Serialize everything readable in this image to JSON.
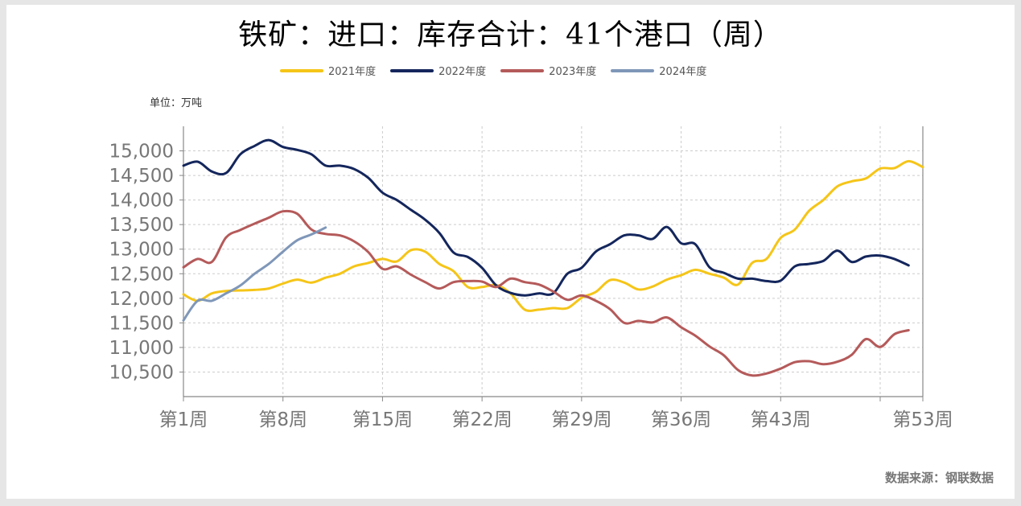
{
  "title": "铁矿：进口：库存合计：41个港口（周）",
  "unit_label": "单位：万吨",
  "source_label": "数据来源：钢联数据",
  "chart_data": {
    "type": "line",
    "title": "铁矿：进口：库存合计：41个港口（周）",
    "xlabel": "",
    "ylabel": "单位：万吨",
    "x_ticks": [
      {
        "week": 1,
        "label": "第1周"
      },
      {
        "week": 8,
        "label": "第8周"
      },
      {
        "week": 15,
        "label": "第15周"
      },
      {
        "week": 22,
        "label": "第22周"
      },
      {
        "week": 29,
        "label": "第29周"
      },
      {
        "week": 36,
        "label": "第36周"
      },
      {
        "week": 43,
        "label": "第43周"
      },
      {
        "week": 53,
        "label": "第53周"
      }
    ],
    "xlim": [
      1,
      53
    ],
    "ylim": [
      10000,
      15500
    ],
    "y_ticks": [
      {
        "value": 10500,
        "label": "10,500"
      },
      {
        "value": 11000,
        "label": "11,000"
      },
      {
        "value": 11500,
        "label": "11,500"
      },
      {
        "value": 12000,
        "label": "12,000"
      },
      {
        "value": 12500,
        "label": "12,500"
      },
      {
        "value": 13000,
        "label": "13,000"
      },
      {
        "value": 13500,
        "label": "13,500"
      },
      {
        "value": 14000,
        "label": "14,000"
      },
      {
        "value": 14500,
        "label": "14,500"
      },
      {
        "value": 15000,
        "label": "15,000"
      }
    ],
    "grid": true,
    "legend_position": "top",
    "series": [
      {
        "name": "2021年度",
        "color": "#f5c518",
        "x": [
          1,
          2,
          3,
          4,
          5,
          6,
          7,
          8,
          9,
          10,
          11,
          12,
          13,
          14,
          15,
          16,
          17,
          18,
          19,
          20,
          21,
          22,
          23,
          24,
          25,
          26,
          27,
          28,
          29,
          30,
          31,
          32,
          33,
          34,
          35,
          36,
          37,
          38,
          39,
          40,
          41,
          42,
          43,
          44,
          45,
          46,
          47,
          48,
          49,
          50,
          51,
          52,
          53
        ],
        "values": [
          12080,
          11950,
          12100,
          12150,
          12160,
          12170,
          12200,
          12300,
          12380,
          12320,
          12420,
          12500,
          12650,
          12720,
          12800,
          12750,
          12980,
          12950,
          12700,
          12550,
          12230,
          12230,
          12270,
          12100,
          11770,
          11770,
          11800,
          11800,
          12010,
          12130,
          12370,
          12320,
          12180,
          12240,
          12380,
          12470,
          12580,
          12500,
          12420,
          12280,
          12720,
          12800,
          13230,
          13400,
          13780,
          14000,
          14280,
          14380,
          14440,
          14640,
          14650,
          14790,
          14670
        ]
      },
      {
        "name": "2022年度",
        "color": "#14265c",
        "x": [
          1,
          2,
          3,
          4,
          5,
          6,
          7,
          8,
          9,
          10,
          11,
          12,
          13,
          14,
          15,
          16,
          17,
          18,
          19,
          20,
          21,
          22,
          23,
          24,
          25,
          26,
          27,
          28,
          29,
          30,
          31,
          32,
          33,
          34,
          35,
          36,
          37,
          38,
          39,
          40,
          41,
          42,
          43,
          44,
          45,
          46,
          47,
          48,
          49,
          50,
          51,
          52
        ],
        "values": [
          14700,
          14780,
          14580,
          14550,
          14930,
          15100,
          15220,
          15080,
          15020,
          14930,
          14700,
          14700,
          14630,
          14450,
          14150,
          14000,
          13800,
          13600,
          13330,
          12930,
          12840,
          12620,
          12260,
          12110,
          12060,
          12100,
          12100,
          12500,
          12620,
          12950,
          13100,
          13280,
          13280,
          13210,
          13450,
          13120,
          13100,
          12630,
          12520,
          12400,
          12400,
          12350,
          12360,
          12650,
          12700,
          12760,
          12970,
          12740,
          12850,
          12870,
          12800,
          12670
        ]
      },
      {
        "name": "2023年度",
        "color": "#b55a5a",
        "x": [
          1,
          2,
          3,
          4,
          5,
          6,
          7,
          8,
          9,
          10,
          11,
          12,
          13,
          14,
          15,
          16,
          17,
          18,
          19,
          20,
          21,
          22,
          23,
          24,
          25,
          26,
          27,
          28,
          29,
          30,
          31,
          32,
          33,
          34,
          35,
          36,
          37,
          38,
          39,
          40,
          41,
          42,
          43,
          44,
          45,
          46,
          47,
          48,
          49,
          50,
          51,
          52
        ],
        "values": [
          12630,
          12800,
          12740,
          13240,
          13390,
          13520,
          13640,
          13770,
          13720,
          13400,
          13310,
          13280,
          13160,
          12940,
          12600,
          12650,
          12480,
          12330,
          12200,
          12330,
          12350,
          12340,
          12230,
          12400,
          12330,
          12280,
          12140,
          11970,
          12060,
          11950,
          11780,
          11500,
          11540,
          11510,
          11610,
          11410,
          11240,
          11020,
          10840,
          10540,
          10430,
          10470,
          10570,
          10700,
          10720,
          10660,
          10710,
          10850,
          11170,
          11010,
          11270,
          11350
        ]
      },
      {
        "name": "2024年度",
        "color": "#7f97b8",
        "x": [
          1,
          2,
          3,
          4,
          5,
          6,
          7,
          8,
          9,
          10,
          11
        ],
        "values": [
          11550,
          11950,
          11950,
          12100,
          12260,
          12500,
          12700,
          12950,
          13180,
          13300,
          13440
        ]
      }
    ]
  }
}
